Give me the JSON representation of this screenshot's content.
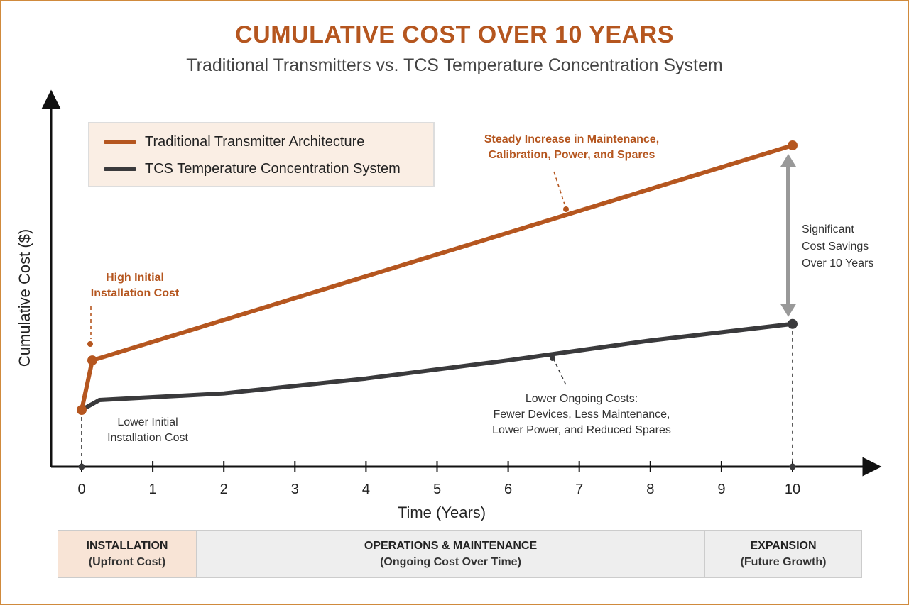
{
  "title": "CUMULATIVE COST OVER 10 YEARS",
  "subtitle": "Traditional Transmitters vs. TCS Temperature Concentration System",
  "colors": {
    "traditional": "#b5561f",
    "tcs": "#3a3a3c",
    "arrow": "#999999",
    "frame": "#d08a3c"
  },
  "chart_data": {
    "type": "line",
    "xlabel": "Time (Years)",
    "ylabel": "Cumulative Cost ($)",
    "xlim": [
      0,
      10
    ],
    "x_ticks": [
      "0",
      "1",
      "2",
      "3",
      "4",
      "5",
      "6",
      "7",
      "8",
      "9",
      "10"
    ],
    "y_ticks_shown": false,
    "grid": false,
    "legend_position": "top-left",
    "series": [
      {
        "name": "Traditional Transmitter Architecture",
        "color": "#b5561f",
        "x": [
          0,
          0.15,
          10
        ],
        "y": [
          0.2,
          0.35,
          1.0
        ]
      },
      {
        "name": "TCS Temperature Concentration System",
        "color": "#3a3a3c",
        "x": [
          0,
          0.25,
          2,
          4,
          6,
          8,
          10
        ],
        "y": [
          0.2,
          0.23,
          0.25,
          0.295,
          0.35,
          0.41,
          0.46
        ]
      }
    ],
    "annotations": {
      "high_initial": [
        "High Initial",
        "Installation Cost"
      ],
      "lower_initial": [
        "Lower Initial",
        "Installation Cost"
      ],
      "steady_increase": [
        "Steady Increase in Maintenance,",
        "Calibration, Power, and Spares"
      ],
      "lower_ongoing": [
        "Lower Ongoing Costs:",
        "Fewer Devices, Less Maintenance,",
        "Lower Power, and Reduced Spares"
      ],
      "savings": [
        "Significant",
        "Cost Savings",
        "Over 10 Years"
      ]
    }
  },
  "phases": [
    {
      "title": "INSTALLATION",
      "sub": "(Upfront Cost)"
    },
    {
      "title": "OPERATIONS & MAINTENANCE",
      "sub": "(Ongoing Cost Over Time)"
    },
    {
      "title": "EXPANSION",
      "sub": "(Future Growth)"
    }
  ]
}
